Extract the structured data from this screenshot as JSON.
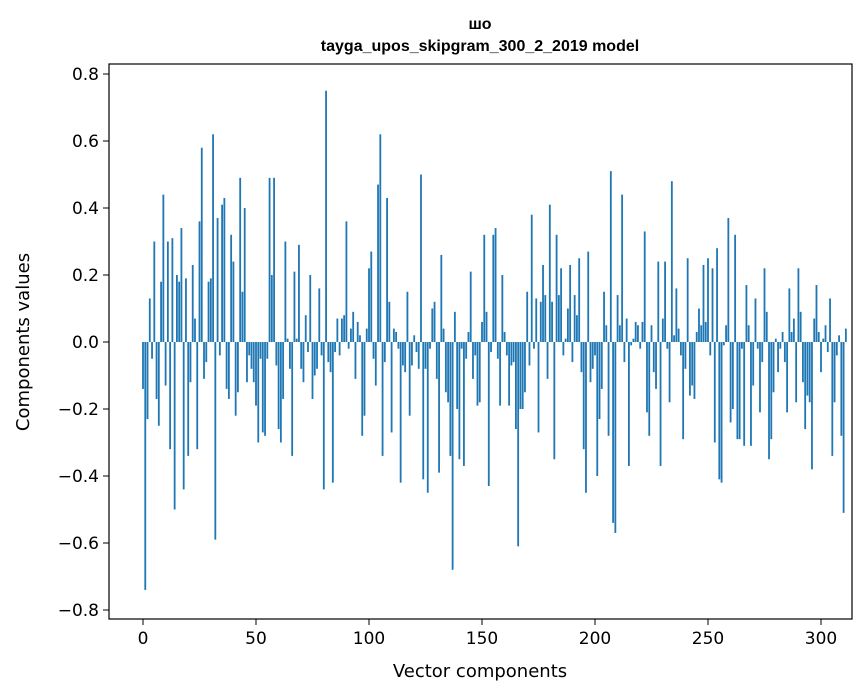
{
  "chart_data": {
    "type": "bar",
    "title_line1": "шо",
    "title_line2": "tayga_upos_skipgram_300_2_2019 model",
    "xlabel": "Vector components",
    "ylabel": "Components values",
    "xlim": [
      -15,
      314
    ],
    "ylim": [
      -0.82,
      0.83
    ],
    "xticks": [
      0,
      50,
      100,
      150,
      200,
      250,
      300
    ],
    "xtick_labels": [
      "0",
      "50",
      "100",
      "150",
      "200",
      "250",
      "300"
    ],
    "yticks": [
      -0.8,
      -0.6,
      -0.4,
      -0.2,
      0.0,
      0.2,
      0.4,
      0.6,
      0.8
    ],
    "ytick_labels": [
      "−0.8",
      "−0.6",
      "−0.4",
      "−0.2",
      "0.0",
      "0.2",
      "0.4",
      "0.6",
      "0.8"
    ],
    "bar_color": "#1f77b4",
    "values": [
      -0.14,
      -0.74,
      -0.23,
      0.13,
      -0.05,
      0.3,
      -0.17,
      -0.25,
      0.18,
      0.44,
      -0.13,
      0.3,
      -0.32,
      0.31,
      -0.5,
      0.2,
      0.18,
      0.34,
      -0.44,
      0.19,
      -0.34,
      -0.12,
      0.23,
      0.07,
      -0.32,
      0.36,
      0.58,
      -0.11,
      -0.06,
      0.18,
      0.19,
      0.62,
      -0.59,
      0.37,
      -0.04,
      0.41,
      0.43,
      -0.14,
      -0.17,
      0.32,
      0.24,
      -0.22,
      -0.15,
      0.49,
      0.15,
      0.4,
      -0.12,
      -0.04,
      -0.08,
      -0.12,
      -0.19,
      -0.3,
      -0.05,
      -0.27,
      -0.28,
      -0.05,
      0.49,
      0.2,
      0.49,
      -0.07,
      -0.26,
      -0.3,
      -0.17,
      0.3,
      0.01,
      -0.08,
      -0.34,
      0.21,
      0.01,
      0.29,
      -0.08,
      -0.12,
      0.08,
      -0.03,
      0.2,
      -0.17,
      -0.1,
      -0.08,
      0.16,
      -0.04,
      -0.44,
      0.75,
      -0.06,
      -0.09,
      -0.42,
      -0.03,
      0.07,
      -0.04,
      0.07,
      0.08,
      0.36,
      -0.02,
      0.04,
      0.09,
      -0.11,
      0.06,
      0.02,
      -0.28,
      -0.22,
      0.04,
      0.22,
      0.27,
      -0.05,
      -0.13,
      0.47,
      0.62,
      -0.34,
      -0.06,
      0.43,
      0.12,
      -0.27,
      0.04,
      0.03,
      -0.02,
      -0.42,
      -0.07,
      -0.09,
      0.15,
      -0.22,
      -0.07,
      0.02,
      -0.03,
      -0.08,
      0.5,
      -0.41,
      -0.08,
      -0.45,
      -0.02,
      0.1,
      0.12,
      -0.11,
      -0.39,
      0.26,
      0.04,
      -0.15,
      -0.18,
      -0.34,
      -0.68,
      0.09,
      -0.2,
      -0.35,
      -0.02,
      -0.37,
      -0.05,
      0.03,
      0.21,
      -0.11,
      -0.04,
      -0.19,
      -0.18,
      0.06,
      0.32,
      0.09,
      -0.43,
      -0.03,
      0.32,
      0.34,
      -0.05,
      -0.19,
      0.2,
      0.03,
      -0.04,
      -0.19,
      -0.07,
      -0.06,
      -0.26,
      -0.61,
      -0.2,
      -0.2,
      -0.15,
      0.15,
      -0.07,
      0.38,
      -0.02,
      0.13,
      -0.27,
      0.12,
      0.23,
      0.14,
      -0.11,
      0.41,
      0.12,
      -0.35,
      0.32,
      0.14,
      0.22,
      -0.04,
      0.01,
      0.1,
      0.23,
      -0.06,
      0.14,
      0.08,
      0.25,
      -0.09,
      -0.32,
      -0.45,
      0.27,
      -0.12,
      -0.08,
      -0.04,
      -0.4,
      -0.23,
      -0.14,
      0.15,
      0.05,
      -0.28,
      0.51,
      -0.54,
      -0.57,
      0.14,
      0.05,
      0.44,
      -0.06,
      0.07,
      -0.37,
      -0.01,
      0.01,
      0.06,
      0.05,
      -0.02,
      0.06,
      0.33,
      -0.21,
      -0.28,
      0.05,
      -0.09,
      -0.14,
      0.24,
      -0.37,
      0.07,
      0.24,
      -0.02,
      -0.18,
      0.48,
      0.02,
      0.16,
      0.04,
      -0.04,
      -0.29,
      -0.08,
      0.25,
      -0.16,
      -0.13,
      -0.17,
      0.03,
      0.1,
      0.05,
      0.23,
      0.06,
      0.25,
      -0.04,
      0.22,
      -0.3,
      0.28,
      -0.41,
      -0.42,
      -0.01,
      0.05,
      0.37,
      -0.24,
      -0.2,
      0.32,
      -0.29,
      -0.29,
      -0.02,
      -0.31,
      0.17,
      0.05,
      -0.31,
      -0.13,
      0.13,
      -0.02,
      -0.21,
      -0.06,
      0.22,
      0.09,
      -0.35,
      -0.29,
      -0.15,
      0.01,
      -0.09,
      -0.02,
      0.03,
      -0.06,
      -0.21,
      0.16,
      0.03,
      0.07,
      -0.18,
      0.22,
      0.09,
      -0.12,
      -0.26,
      -0.16,
      -0.18,
      -0.38,
      0.07,
      0.17,
      0.03,
      -0.09,
      0.01,
      0.05,
      -0.03,
      0.13,
      -0.34,
      -0.18,
      -0.04,
      0.02,
      -0.28,
      -0.51,
      0.04
    ]
  }
}
